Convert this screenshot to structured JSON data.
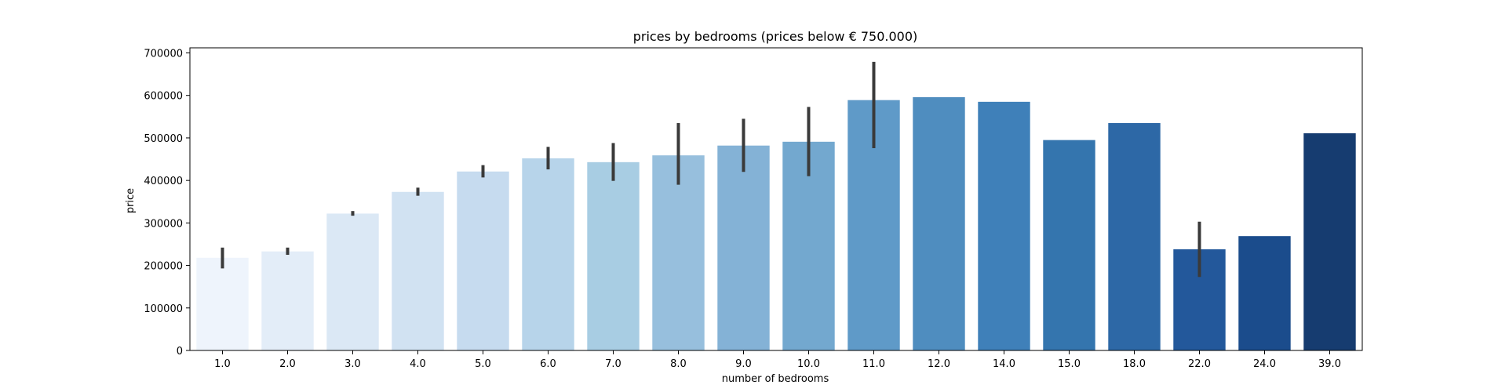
{
  "chart_data": {
    "type": "bar",
    "title": "prices by bedrooms (prices below € 750.000)",
    "xlabel": "number of bedrooms",
    "ylabel": "price",
    "ylim": [
      0,
      712000
    ],
    "yticks": [
      0,
      100000,
      200000,
      300000,
      400000,
      500000,
      600000,
      700000
    ],
    "grid": false,
    "categories": [
      "1.0",
      "2.0",
      "3.0",
      "4.0",
      "5.0",
      "6.0",
      "7.0",
      "8.0",
      "9.0",
      "10.0",
      "11.0",
      "12.0",
      "14.0",
      "15.0",
      "18.0",
      "22.0",
      "24.0",
      "39.0"
    ],
    "values": [
      218000,
      233000,
      322000,
      373000,
      421000,
      452000,
      443000,
      459000,
      482000,
      491000,
      589000,
      596000,
      585000,
      495000,
      535000,
      238000,
      269000,
      511000
    ],
    "error_low": [
      193000,
      225000,
      317000,
      364000,
      407000,
      426000,
      399000,
      390000,
      420000,
      410000,
      476000,
      null,
      null,
      null,
      null,
      173000,
      null,
      null
    ],
    "error_high": [
      242000,
      242000,
      328000,
      383000,
      436000,
      479000,
      488000,
      535000,
      545000,
      573000,
      679000,
      null,
      null,
      null,
      null,
      303000,
      null,
      null
    ],
    "colors": [
      "#eef4fc",
      "#e3edf8",
      "#dbe8f5",
      "#d1e2f2",
      "#c6dbef",
      "#b7d4ea",
      "#a8cde3",
      "#97bfdd",
      "#84b2d6",
      "#73a8cf",
      "#5f9ac8",
      "#4f8dbf",
      "#3f80b9",
      "#3475ae",
      "#2d68a6",
      "#23589b",
      "#1b4c8c",
      "#163c70"
    ],
    "errorbar_color": "#3a3a3a"
  }
}
